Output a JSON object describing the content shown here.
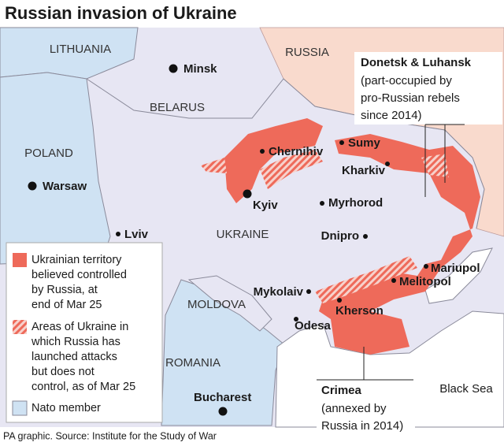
{
  "title": "Russian invasion of Ukraine",
  "countries": [
    "LITHUANIA",
    "RUSSIA",
    "BELARUS",
    "POLAND",
    "UKRAINE",
    "MOLDOVA",
    "ROMANIA"
  ],
  "cities": [
    {
      "name": "Minsk"
    },
    {
      "name": "Warsaw"
    },
    {
      "name": "Kyiv"
    },
    {
      "name": "Chernihiv"
    },
    {
      "name": "Sumy"
    },
    {
      "name": "Kharkiv"
    },
    {
      "name": "Myrhorod"
    },
    {
      "name": "Lviv"
    },
    {
      "name": "Dnipro"
    },
    {
      "name": "Mariupol"
    },
    {
      "name": "Melitopol"
    },
    {
      "name": "Mykolaiv"
    },
    {
      "name": "Kherson"
    },
    {
      "name": "Odesa"
    },
    {
      "name": "Bucharest"
    }
  ],
  "sea": "Black Sea",
  "annotations": [
    {
      "title": "Donetsk & Luhansk",
      "lines": [
        "(part-occupied by",
        "pro-Russian rebels",
        "since 2014)"
      ]
    },
    {
      "title": "Crimea",
      "lines": [
        "(annexed by",
        "Russia in 2014)"
      ]
    }
  ],
  "legend": [
    {
      "lines": [
        "Ukrainian territory",
        "believed controlled",
        "by Russia, at",
        "end of Mar 25"
      ]
    },
    {
      "lines": [
        "Areas of Ukraine in",
        "which Russia has",
        "launched attacks",
        "but does not",
        "control, as of Mar 25"
      ]
    },
    {
      "lines": [
        "Nato member"
      ]
    }
  ],
  "source": "PA graphic. Source: Institute for the Study of War"
}
